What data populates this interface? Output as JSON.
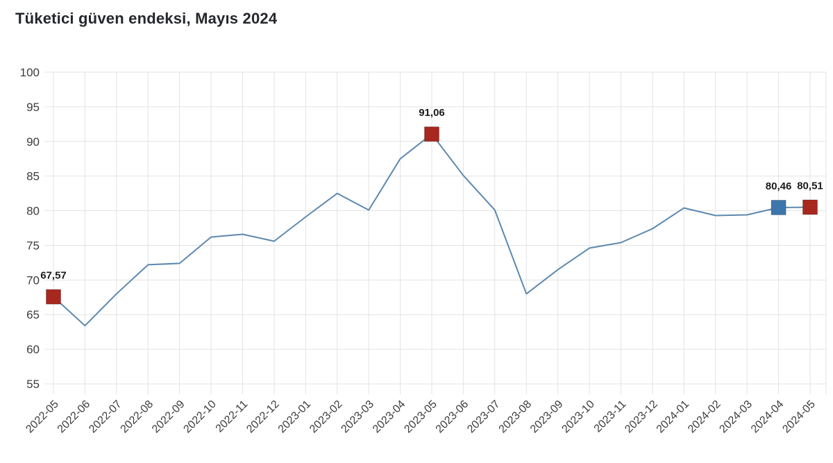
{
  "title": "Tüketici güven endeksi, Mayıs 2024",
  "chart_data": {
    "type": "line",
    "title": "Tüketici güven endeksi, Mayıs 2024",
    "xlabel": "",
    "ylabel": "",
    "categories": [
      "2022-05",
      "2022-06",
      "2022-07",
      "2022-08",
      "2022-09",
      "2022-10",
      "2022-11",
      "2022-12",
      "2023-01",
      "2023-02",
      "2023-03",
      "2023-04",
      "2023-05",
      "2023-06",
      "2023-07",
      "2023-08",
      "2023-09",
      "2023-10",
      "2023-11",
      "2023-12",
      "2024-01",
      "2024-02",
      "2024-03",
      "2024-04",
      "2024-05"
    ],
    "values": [
      67.57,
      63.4,
      68.0,
      72.2,
      72.4,
      76.2,
      76.6,
      75.6,
      79.1,
      82.5,
      80.1,
      87.5,
      91.06,
      85.1,
      80.1,
      68.0,
      71.5,
      74.6,
      75.4,
      77.4,
      80.4,
      79.3,
      79.4,
      80.46,
      80.51
    ],
    "ylim": [
      55,
      100
    ],
    "yticks": [
      55,
      60,
      65,
      70,
      75,
      80,
      85,
      90,
      95,
      100
    ],
    "grid": true,
    "legend": "none",
    "xtick_rotation": -45,
    "annotations": [
      {
        "category": "2022-05",
        "index": 0,
        "value": 67.57,
        "label": "67,57",
        "marker": "square",
        "marker_color": "#a8271e"
      },
      {
        "category": "2023-05",
        "index": 12,
        "value": 91.06,
        "label": "91,06",
        "marker": "square",
        "marker_color": "#a8271e"
      },
      {
        "category": "2024-04",
        "index": 23,
        "value": 80.46,
        "label": "80,46",
        "marker": "square",
        "marker_color": "#3d76ad"
      },
      {
        "category": "2024-05",
        "index": 24,
        "value": 80.51,
        "label": "80,51",
        "marker": "square",
        "marker_color": "#a8271e"
      }
    ],
    "colors": {
      "line": "#5c88ae",
      "marker_red": "#a8271e",
      "marker_blue": "#3d76ad",
      "grid": "#e3e3e3",
      "axis_text": "#3c3c3c",
      "annotation_text": "#1b1b1b",
      "title_text": "#24272c",
      "background": "#ffffff"
    }
  }
}
